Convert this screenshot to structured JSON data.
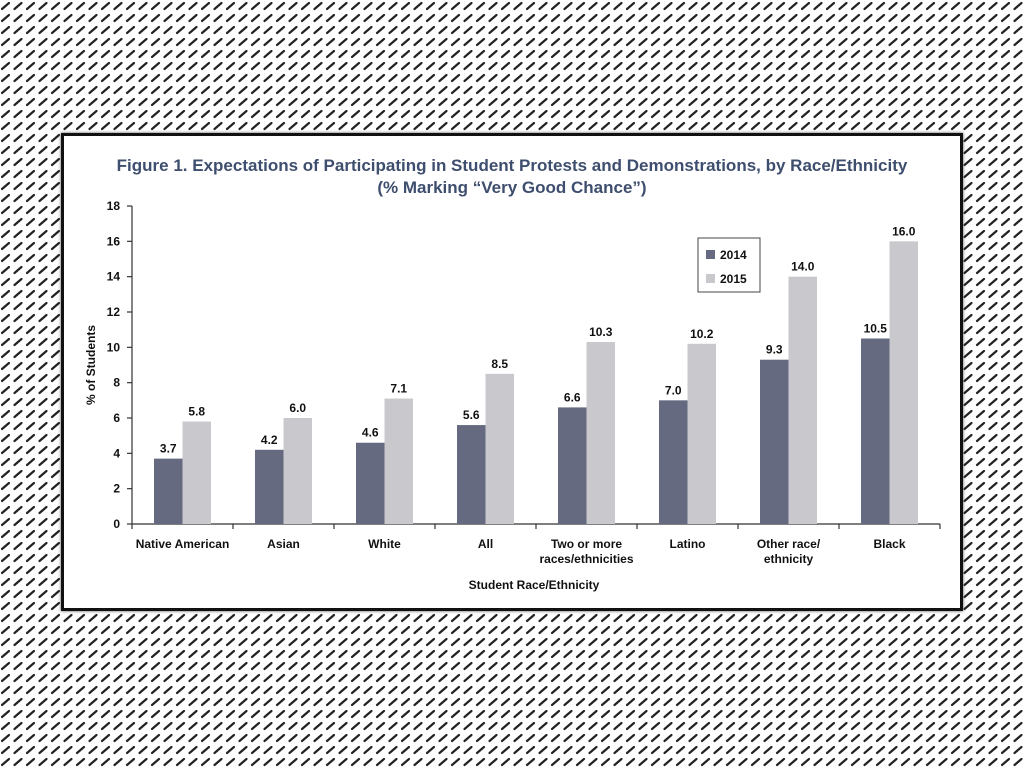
{
  "chart_data": {
    "type": "bar",
    "title": "Figure 1. Expectations of Participating in Student Protests and Demonstrations, by Race/Ethnicity",
    "subtitle": "(% Marking “Very Good Chance”)",
    "xlabel": "Student Race/Ethnicity",
    "ylabel": "% of Students",
    "ylim": [
      0,
      18
    ],
    "yticks": [
      0,
      2,
      4,
      6,
      8,
      10,
      12,
      14,
      16,
      18
    ],
    "grid": false,
    "legend_position": "top-right",
    "categories": [
      [
        "Native American"
      ],
      [
        "Asian"
      ],
      [
        "White"
      ],
      [
        "All"
      ],
      [
        "Two or more",
        "races/ethnicities"
      ],
      [
        "Latino"
      ],
      [
        "Other race/",
        "ethnicity"
      ],
      [
        "Black"
      ]
    ],
    "series": [
      {
        "name": "2014",
        "color": "#656a80",
        "values": [
          3.7,
          4.2,
          4.6,
          5.6,
          6.6,
          7.0,
          9.3,
          10.5
        ],
        "labels": [
          "3.7",
          "4.2",
          "4.6",
          "5.6",
          "6.6",
          "7.0",
          "9.3",
          "10.5"
        ]
      },
      {
        "name": "2015",
        "color": "#c9c9cd",
        "values": [
          5.8,
          6.0,
          7.1,
          8.5,
          10.3,
          10.2,
          14.0,
          16.0
        ],
        "labels": [
          "5.8",
          "6.0",
          "7.1",
          "8.5",
          "10.3",
          "10.2",
          "14.0",
          "16.0"
        ]
      }
    ]
  }
}
